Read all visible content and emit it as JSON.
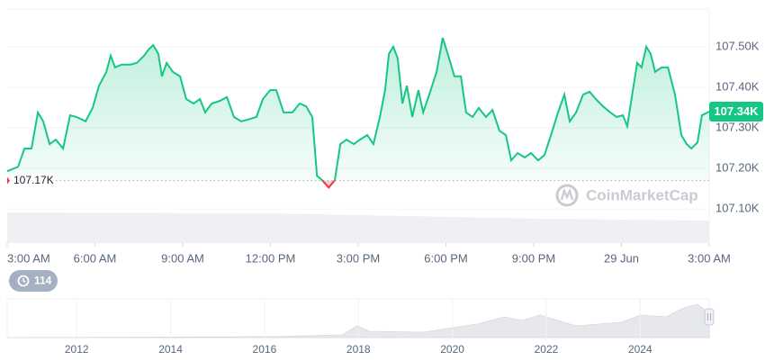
{
  "chart_data": {
    "type": "line",
    "x": [
      0.0,
      0.37,
      0.59,
      0.83,
      1.05,
      1.23,
      1.45,
      1.66,
      1.91,
      2.15,
      2.37,
      2.68,
      2.92,
      3.14,
      3.39,
      3.54,
      3.69,
      3.91,
      4.22,
      4.43,
      4.68,
      4.83,
      4.99,
      5.17,
      5.29,
      5.45,
      5.66,
      5.91,
      6.12,
      6.37,
      6.59,
      6.77,
      6.99,
      7.29,
      7.51,
      7.75,
      8.0,
      8.31,
      8.52,
      8.74,
      8.99,
      9.2,
      9.45,
      9.75,
      10.0,
      10.22,
      10.43,
      10.59,
      10.77,
      10.99,
      11.2,
      11.39,
      11.6,
      11.85,
      12.06,
      12.31,
      12.52,
      12.74,
      12.92,
      13.05,
      13.2,
      13.35,
      13.51,
      13.66,
      13.85,
      14.06,
      14.22,
      14.43,
      14.68,
      14.89,
      15.08,
      15.29,
      15.51,
      15.69,
      15.91,
      16.12,
      16.37,
      16.59,
      16.83,
      17.05,
      17.23,
      17.45,
      17.69,
      17.91,
      18.15,
      18.37,
      18.59,
      18.83,
      19.05,
      19.23,
      19.45,
      19.69,
      19.91,
      20.12,
      20.37,
      20.62,
      20.83,
      21.05,
      21.2,
      21.39,
      21.54,
      21.69,
      21.85,
      22.0,
      22.15,
      22.37,
      22.59,
      22.83,
      23.05,
      23.23,
      23.39,
      23.6,
      23.75,
      24.0
    ],
    "values": [
      107.193,
      107.204,
      107.249,
      107.249,
      107.338,
      107.316,
      107.26,
      107.271,
      107.249,
      107.331,
      107.327,
      107.316,
      107.349,
      107.404,
      107.438,
      107.478,
      107.449,
      107.456,
      107.456,
      107.46,
      107.478,
      107.493,
      107.504,
      107.482,
      107.427,
      107.46,
      107.438,
      107.427,
      107.371,
      107.36,
      107.371,
      107.338,
      107.36,
      107.367,
      107.376,
      107.327,
      107.316,
      107.322,
      107.327,
      107.371,
      107.393,
      107.393,
      107.338,
      107.338,
      107.36,
      107.353,
      107.327,
      107.182,
      107.171,
      107.153,
      107.171,
      107.26,
      107.271,
      107.26,
      107.271,
      107.282,
      107.26,
      107.327,
      107.393,
      107.482,
      107.5,
      107.471,
      107.36,
      107.404,
      107.327,
      107.393,
      107.338,
      107.382,
      107.438,
      107.522,
      107.478,
      107.427,
      107.427,
      107.338,
      107.327,
      107.349,
      107.327,
      107.344,
      107.293,
      107.282,
      107.22,
      107.238,
      107.227,
      107.238,
      107.22,
      107.233,
      107.282,
      107.338,
      107.382,
      107.316,
      107.338,
      107.382,
      107.389,
      107.371,
      107.353,
      107.338,
      107.327,
      107.331,
      107.304,
      107.393,
      107.46,
      107.449,
      107.5,
      107.482,
      107.438,
      107.449,
      107.449,
      107.382,
      107.282,
      107.26,
      107.249,
      107.264,
      107.331,
      107.34
    ],
    "up_color": "#16c784",
    "down_color": "#ea3943",
    "xlim": [
      0,
      24
    ],
    "xticks": [
      {
        "value": 0,
        "label": "3:00 AM"
      },
      {
        "value": 3,
        "label": "6:00 AM"
      },
      {
        "value": 6,
        "label": "9:00 AM"
      },
      {
        "value": 9,
        "label": "12:00 PM"
      },
      {
        "value": 12,
        "label": "3:00 PM"
      },
      {
        "value": 15,
        "label": "6:00 PM"
      },
      {
        "value": 18,
        "label": "9:00 PM"
      },
      {
        "value": 21,
        "label": "29 Jun"
      },
      {
        "value": 24,
        "label": "3:00 AM"
      }
    ],
    "ylim": [
      107.016,
      107.593
    ],
    "yticks": [
      {
        "value": 107.1,
        "label": "107.10K"
      },
      {
        "value": 107.2,
        "label": "107.20K"
      },
      {
        "value": 107.3,
        "label": "107.30K"
      },
      {
        "value": 107.4,
        "label": "107.40K"
      },
      {
        "value": 107.5,
        "label": "107.50K"
      }
    ],
    "grid": true,
    "reference": {
      "value": 107.17,
      "label": "107.17K"
    },
    "current_price": {
      "value": 107.34,
      "label": "107.34K"
    },
    "watermark": "CoinMarketCap",
    "history_badge": "114",
    "navigator": {
      "xlim": [
        2010.52,
        2025.47
      ],
      "xticks": [
        2012,
        2014,
        2016,
        2018,
        2020,
        2022,
        2024
      ]
    }
  }
}
